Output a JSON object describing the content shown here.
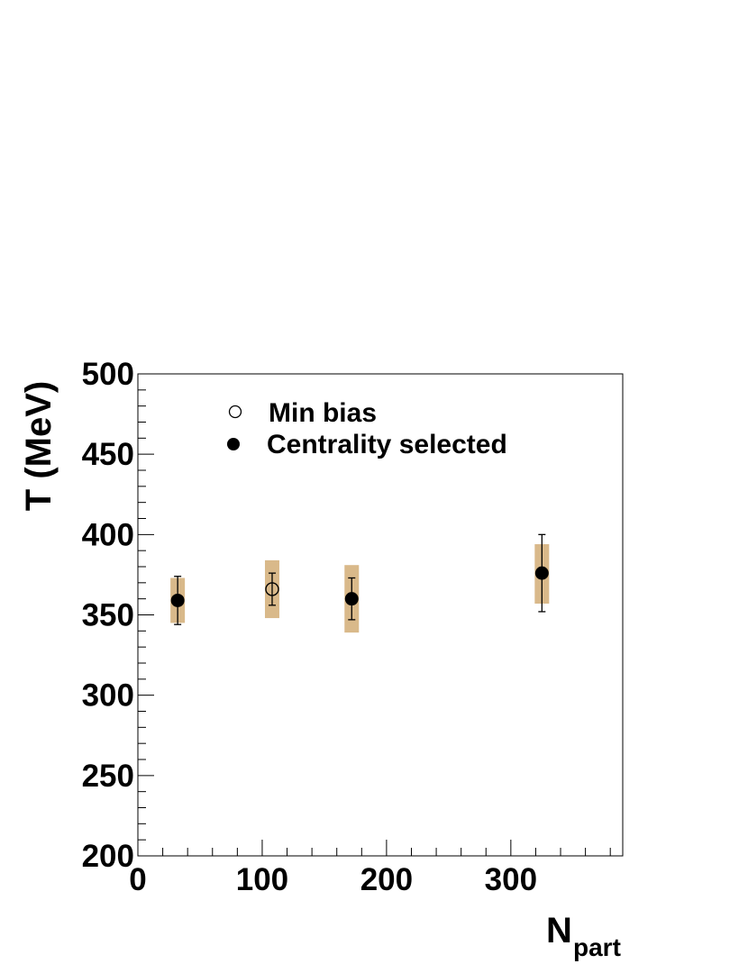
{
  "chart_data": {
    "type": "scatter",
    "xlabel": "N",
    "xlabel_sub": "part",
    "ylabel": "T (MeV)",
    "xlim": [
      0,
      390
    ],
    "ylim": [
      200,
      500
    ],
    "x_ticks": [
      0,
      100,
      200,
      300
    ],
    "y_ticks": [
      200,
      250,
      300,
      350,
      400,
      450,
      500
    ],
    "x_tick_labels": [
      "0",
      "100",
      "200",
      "300"
    ],
    "y_tick_labels": [
      "200",
      "250",
      "300",
      "350",
      "400",
      "450",
      "500"
    ],
    "legend_position": "top-left",
    "systematic_color": "#d9b98a",
    "series": [
      {
        "name": "Min bias",
        "marker": "open-circle",
        "points": [
          {
            "x": 108,
            "y": 366,
            "stat_lo": 356,
            "stat_hi": 376,
            "sys_lo": 348,
            "sys_hi": 384
          }
        ]
      },
      {
        "name": "Centrality selected",
        "marker": "filled-circle",
        "points": [
          {
            "x": 32,
            "y": 359,
            "stat_lo": 344,
            "stat_hi": 374,
            "sys_lo": 345,
            "sys_hi": 373
          },
          {
            "x": 172,
            "y": 360,
            "stat_lo": 347,
            "stat_hi": 373,
            "sys_lo": 339,
            "sys_hi": 381
          },
          {
            "x": 325,
            "y": 376,
            "stat_lo": 352,
            "stat_hi": 400,
            "sys_lo": 357,
            "sys_hi": 394
          }
        ]
      }
    ]
  }
}
